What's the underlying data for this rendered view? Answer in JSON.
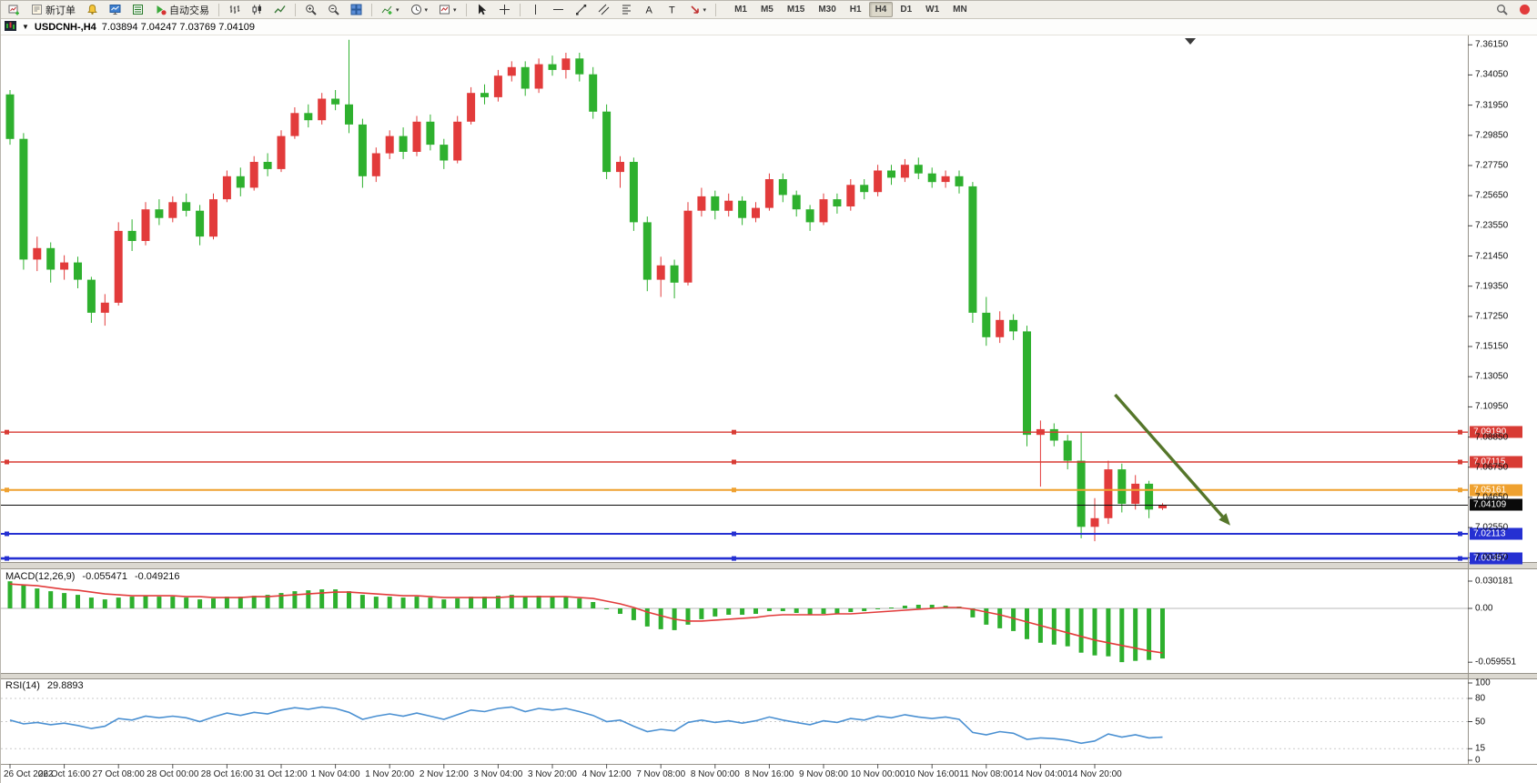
{
  "toolbar": {
    "buttons": [
      {
        "icon": "new-chart"
      },
      {
        "icon": "new-order",
        "label": "新订单"
      },
      {
        "icon": "alerts"
      },
      {
        "icon": "market-watch"
      },
      {
        "icon": "data-window"
      },
      {
        "icon": "autotrading",
        "label": "自动交易"
      },
      {
        "sep": true
      },
      {
        "icon": "bar-chart-type"
      },
      {
        "icon": "candle-chart-type"
      },
      {
        "icon": "line-chart-type"
      },
      {
        "sep": true
      },
      {
        "icon": "zoom-in"
      },
      {
        "icon": "zoom-out"
      },
      {
        "icon": "tile-windows"
      },
      {
        "sep": true
      },
      {
        "icon": "indicators",
        "caret": true
      },
      {
        "icon": "periods",
        "caret": true
      },
      {
        "icon": "templates",
        "caret": true
      },
      {
        "sep": true
      },
      {
        "icon": "cursor"
      },
      {
        "icon": "crosshair"
      },
      {
        "sep": true
      },
      {
        "icon": "vertical-line"
      },
      {
        "icon": "horizontal-line"
      },
      {
        "icon": "trendline"
      },
      {
        "icon": "equidistant-channel"
      },
      {
        "icon": "fibonacci"
      },
      {
        "icon": "text"
      },
      {
        "icon": "text-label"
      },
      {
        "icon": "arrows",
        "caret": true
      },
      {
        "sep": true
      }
    ],
    "timeframes": [
      "M1",
      "M5",
      "M15",
      "M30",
      "H1",
      "H4",
      "D1",
      "W1",
      "MN"
    ],
    "active_timeframe": "H4",
    "right_icons": [
      {
        "icon": "search"
      },
      {
        "icon": "notification"
      }
    ]
  },
  "chart": {
    "title": "USDCNH-,H4",
    "ohlc": "7.03894 7.04247 7.03769 7.04109"
  },
  "price_axis": {
    "ticks": [
      "7.36150",
      "7.34050",
      "7.31950",
      "7.29850",
      "7.27750",
      "7.25650",
      "7.23550",
      "7.21450",
      "7.19350",
      "7.17250",
      "7.15150",
      "7.13050",
      "7.10950",
      "7.08850",
      "7.06750",
      "7.04650",
      "7.02550",
      "7.00450"
    ]
  },
  "time_axis": {
    "ticks": [
      "26 Oct 2022",
      "26 Oct 16:00",
      "27 Oct 08:00",
      "28 Oct 00:00",
      "28 Oct 16:00",
      "31 Oct 12:00",
      "1 Nov 04:00",
      "1 Nov 20:00",
      "2 Nov 12:00",
      "3 Nov 04:00",
      "3 Nov 20:00",
      "4 Nov 12:00",
      "7 Nov 08:00",
      "8 Nov 00:00",
      "8 Nov 16:00",
      "9 Nov 08:00",
      "10 Nov 00:00",
      "10 Nov 16:00",
      "11 Nov 08:00",
      "14 Nov 04:00",
      "14 Nov 20:00"
    ]
  },
  "levels": [
    {
      "name": "resistance-line-1",
      "label": "7.09190",
      "price": 7.0919,
      "color": "#d83b34",
      "width": 1.4,
      "handles": true
    },
    {
      "name": "resistance-line-2",
      "label": "7.07115",
      "price": 7.07115,
      "color": "#d83b34",
      "width": 1.4,
      "handles": true
    },
    {
      "name": "pivot-line",
      "label": "7.05161",
      "price": 7.05161,
      "color": "#efa12f",
      "width": 2,
      "handles": true
    },
    {
      "name": "current-price-line",
      "label": "7.04109",
      "price": 7.04109,
      "color": "#0a0a0a",
      "width": 1,
      "handles": false
    },
    {
      "name": "support-line-1",
      "label": "7.02113",
      "price": 7.02113,
      "color": "#2530d2",
      "width": 2,
      "handles": true
    },
    {
      "name": "support-line-2",
      "label": "7.00397",
      "price": 7.00397,
      "color": "#2530d2",
      "width": 2.6,
      "handles": true
    }
  ],
  "macd": {
    "label": "MACD(12,26,9)",
    "main_value": "-0.055471",
    "signal_value": "-0.049216",
    "axis": [
      "0.030181",
      "0.00",
      "-0.059551"
    ]
  },
  "rsi": {
    "label": "RSI(14)",
    "value": "29.8893",
    "axis": [
      "100",
      "80",
      "50",
      "15",
      "0"
    ],
    "levels": [
      80,
      50,
      15
    ]
  },
  "colors": {
    "candle_up": "#e23b3b",
    "candle_down": "#2eb02e",
    "macd_hist": "#2eb02e",
    "macd_signal": "#e23b3b",
    "rsi_line": "#4a90d2",
    "arrow": "#55762a"
  },
  "chart_data": {
    "type": "candlestick",
    "symbol": "USDCNH-",
    "timeframe": "H4",
    "price_range": [
      7.0015,
      7.368
    ],
    "macd_range": [
      -0.068,
      0.038
    ],
    "rsi_range": [
      0,
      100
    ],
    "candles": [
      [
        7.327,
        7.33,
        7.292,
        7.296
      ],
      [
        7.296,
        7.3,
        7.205,
        7.212
      ],
      [
        7.212,
        7.228,
        7.204,
        7.22
      ],
      [
        7.22,
        7.224,
        7.196,
        7.205
      ],
      [
        7.205,
        7.215,
        7.198,
        7.21
      ],
      [
        7.21,
        7.214,
        7.192,
        7.198
      ],
      [
        7.198,
        7.2,
        7.168,
        7.175
      ],
      [
        7.175,
        7.188,
        7.166,
        7.182
      ],
      [
        7.182,
        7.238,
        7.18,
        7.232
      ],
      [
        7.232,
        7.24,
        7.218,
        7.225
      ],
      [
        7.225,
        7.252,
        7.222,
        7.247
      ],
      [
        7.247,
        7.254,
        7.236,
        7.241
      ],
      [
        7.241,
        7.256,
        7.238,
        7.252
      ],
      [
        7.252,
        7.258,
        7.242,
        7.246
      ],
      [
        7.246,
        7.25,
        7.222,
        7.228
      ],
      [
        7.228,
        7.258,
        7.226,
        7.254
      ],
      [
        7.254,
        7.274,
        7.252,
        7.27
      ],
      [
        7.27,
        7.276,
        7.256,
        7.262
      ],
      [
        7.262,
        7.284,
        7.26,
        7.28
      ],
      [
        7.28,
        7.286,
        7.27,
        7.275
      ],
      [
        7.275,
        7.302,
        7.273,
        7.298
      ],
      [
        7.298,
        7.318,
        7.296,
        7.314
      ],
      [
        7.314,
        7.32,
        7.304,
        7.309
      ],
      [
        7.309,
        7.328,
        7.306,
        7.324
      ],
      [
        7.324,
        7.33,
        7.316,
        7.32
      ],
      [
        7.32,
        7.365,
        7.3,
        7.306
      ],
      [
        7.306,
        7.31,
        7.262,
        7.27
      ],
      [
        7.27,
        7.29,
        7.266,
        7.286
      ],
      [
        7.286,
        7.302,
        7.282,
        7.298
      ],
      [
        7.298,
        7.304,
        7.282,
        7.287
      ],
      [
        7.287,
        7.312,
        7.284,
        7.308
      ],
      [
        7.308,
        7.313,
        7.288,
        7.292
      ],
      [
        7.292,
        7.296,
        7.275,
        7.281
      ],
      [
        7.281,
        7.312,
        7.279,
        7.308
      ],
      [
        7.308,
        7.332,
        7.306,
        7.328
      ],
      [
        7.328,
        7.334,
        7.32,
        7.325
      ],
      [
        7.325,
        7.344,
        7.322,
        7.34
      ],
      [
        7.34,
        7.35,
        7.336,
        7.346
      ],
      [
        7.346,
        7.35,
        7.326,
        7.331
      ],
      [
        7.331,
        7.352,
        7.328,
        7.348
      ],
      [
        7.348,
        7.354,
        7.34,
        7.344
      ],
      [
        7.344,
        7.356,
        7.338,
        7.352
      ],
      [
        7.352,
        7.356,
        7.336,
        7.341
      ],
      [
        7.341,
        7.346,
        7.31,
        7.315
      ],
      [
        7.315,
        7.32,
        7.268,
        7.273
      ],
      [
        7.273,
        7.284,
        7.262,
        7.28
      ],
      [
        7.28,
        7.283,
        7.232,
        7.238
      ],
      [
        7.238,
        7.242,
        7.19,
        7.198
      ],
      [
        7.198,
        7.214,
        7.186,
        7.208
      ],
      [
        7.208,
        7.212,
        7.185,
        7.196
      ],
      [
        7.196,
        7.252,
        7.194,
        7.246
      ],
      [
        7.246,
        7.262,
        7.242,
        7.256
      ],
      [
        7.256,
        7.26,
        7.24,
        7.246
      ],
      [
        7.246,
        7.258,
        7.242,
        7.253
      ],
      [
        7.253,
        7.256,
        7.236,
        7.241
      ],
      [
        7.241,
        7.252,
        7.238,
        7.248
      ],
      [
        7.248,
        7.272,
        7.246,
        7.268
      ],
      [
        7.268,
        7.272,
        7.252,
        7.257
      ],
      [
        7.257,
        7.26,
        7.242,
        7.247
      ],
      [
        7.247,
        7.25,
        7.232,
        7.238
      ],
      [
        7.238,
        7.258,
        7.236,
        7.254
      ],
      [
        7.254,
        7.258,
        7.244,
        7.249
      ],
      [
        7.249,
        7.268,
        7.246,
        7.264
      ],
      [
        7.264,
        7.268,
        7.254,
        7.259
      ],
      [
        7.259,
        7.278,
        7.256,
        7.274
      ],
      [
        7.274,
        7.278,
        7.264,
        7.269
      ],
      [
        7.269,
        7.282,
        7.266,
        7.278
      ],
      [
        7.278,
        7.283,
        7.268,
        7.272
      ],
      [
        7.272,
        7.276,
        7.262,
        7.266
      ],
      [
        7.266,
        7.274,
        7.262,
        7.27
      ],
      [
        7.27,
        7.274,
        7.258,
        7.263
      ],
      [
        7.263,
        7.266,
        7.168,
        7.175
      ],
      [
        7.175,
        7.186,
        7.152,
        7.158
      ],
      [
        7.158,
        7.176,
        7.154,
        7.17
      ],
      [
        7.17,
        7.174,
        7.156,
        7.162
      ],
      [
        7.162,
        7.166,
        7.082,
        7.09
      ],
      [
        7.09,
        7.1,
        7.054,
        7.094
      ],
      [
        7.094,
        7.098,
        7.082,
        7.086
      ],
      [
        7.086,
        7.09,
        7.066,
        7.072
      ],
      [
        7.072,
        7.092,
        7.018,
        7.026
      ],
      [
        7.026,
        7.046,
        7.016,
        7.032
      ],
      [
        7.032,
        7.072,
        7.028,
        7.066
      ],
      [
        7.066,
        7.07,
        7.036,
        7.042
      ],
      [
        7.042,
        7.062,
        7.038,
        7.056
      ],
      [
        7.056,
        7.058,
        7.032,
        7.038
      ],
      [
        7.03894,
        7.04247,
        7.03769,
        7.04109
      ]
    ],
    "macd_hist": [
      0.03,
      0.026,
      0.022,
      0.019,
      0.017,
      0.015,
      0.012,
      0.01,
      0.012,
      0.013,
      0.014,
      0.013,
      0.013,
      0.012,
      0.01,
      0.011,
      0.013,
      0.013,
      0.014,
      0.015,
      0.017,
      0.019,
      0.02,
      0.021,
      0.021,
      0.019,
      0.015,
      0.013,
      0.013,
      0.012,
      0.013,
      0.012,
      0.01,
      0.011,
      0.013,
      0.013,
      0.014,
      0.015,
      0.013,
      0.014,
      0.013,
      0.013,
      0.011,
      0.007,
      0.0,
      -0.006,
      -0.013,
      -0.02,
      -0.023,
      -0.024,
      -0.018,
      -0.012,
      -0.009,
      -0.007,
      -0.007,
      -0.006,
      -0.003,
      -0.003,
      -0.005,
      -0.007,
      -0.006,
      -0.006,
      -0.004,
      -0.003,
      -0.001,
      0.001,
      0.003,
      0.004,
      0.004,
      0.003,
      0.002,
      -0.01,
      -0.018,
      -0.022,
      -0.025,
      -0.034,
      -0.038,
      -0.04,
      -0.042,
      -0.049,
      -0.052,
      -0.053,
      -0.0595,
      -0.058,
      -0.057,
      -0.055471
    ],
    "macd_signal": [
      0.027,
      0.026,
      0.025,
      0.023,
      0.021,
      0.02,
      0.018,
      0.016,
      0.015,
      0.014,
      0.014,
      0.014,
      0.014,
      0.013,
      0.013,
      0.012,
      0.012,
      0.012,
      0.013,
      0.013,
      0.014,
      0.015,
      0.016,
      0.017,
      0.018,
      0.018,
      0.017,
      0.016,
      0.015,
      0.014,
      0.014,
      0.013,
      0.012,
      0.012,
      0.012,
      0.012,
      0.012,
      0.013,
      0.013,
      0.013,
      0.013,
      0.013,
      0.012,
      0.011,
      0.008,
      0.005,
      0.001,
      -0.004,
      -0.008,
      -0.012,
      -0.014,
      -0.014,
      -0.013,
      -0.012,
      -0.011,
      -0.01,
      -0.008,
      -0.007,
      -0.007,
      -0.007,
      -0.007,
      -0.006,
      -0.006,
      -0.005,
      -0.004,
      -0.003,
      -0.002,
      -0.001,
      0.0,
      0.001,
      0.001,
      -0.001,
      -0.004,
      -0.007,
      -0.011,
      -0.015,
      -0.019,
      -0.023,
      -0.027,
      -0.031,
      -0.035,
      -0.038,
      -0.041,
      -0.044,
      -0.047,
      -0.049216
    ],
    "rsi": [
      52,
      47,
      49,
      46,
      48,
      45,
      41,
      44,
      54,
      52,
      57,
      55,
      57,
      55,
      50,
      56,
      61,
      58,
      62,
      60,
      65,
      68,
      66,
      69,
      67,
      62,
      53,
      57,
      60,
      57,
      61,
      57,
      53,
      59,
      65,
      63,
      67,
      69,
      63,
      67,
      65,
      67,
      63,
      58,
      50,
      52,
      44,
      37,
      40,
      38,
      49,
      52,
      49,
      51,
      48,
      51,
      56,
      52,
      49,
      46,
      51,
      49,
      54,
      52,
      57,
      55,
      59,
      56,
      54,
      56,
      53,
      36,
      33,
      37,
      35,
      27,
      29,
      28,
      26,
      22,
      25,
      34,
      30,
      33,
      29,
      29.8893
    ],
    "annotations": [
      {
        "type": "arrow",
        "name": "trend-arrow",
        "color": "#55762a",
        "from": {
          "index": 81.5,
          "price": 7.118
        },
        "to": {
          "index": 90,
          "price": 7.027
        }
      }
    ]
  }
}
